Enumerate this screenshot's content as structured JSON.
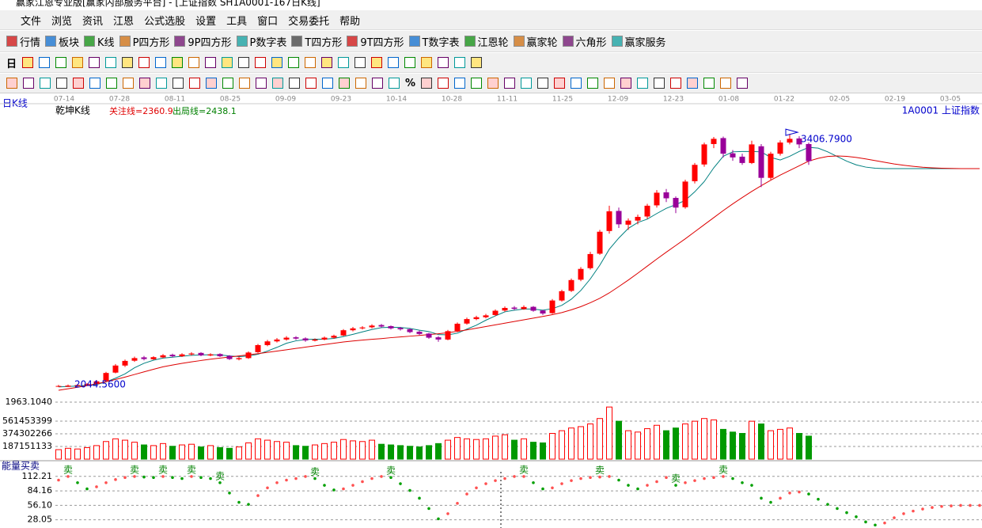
{
  "window": {
    "title": "赢家江恩专业版[赢家内部服务平台] - [上证指数 SH1A0001-167日K线]",
    "menu": [
      "文件",
      "浏览",
      "资讯",
      "江恩",
      "公式选股",
      "设置",
      "工具",
      "窗口",
      "交易委托",
      "帮助"
    ],
    "toolbar": [
      "行情",
      "板块",
      "K线",
      "P四方形",
      "9P四方形",
      "P数字表",
      "T四方形",
      "9T四方形",
      "T数字表",
      "江恩轮",
      "赢家轮",
      "六角形",
      "赢家服务"
    ],
    "period": "日",
    "percent_button": "%"
  },
  "chart_data": [
    {
      "type": "candlestick",
      "panel_label": "日K线",
      "indicator_name": "乾坤K线",
      "focus_line": "关注线=2360.9",
      "exit_line": "出局线=2438.1",
      "symbol": "1A0001  上证指数",
      "dates": [
        "07-14",
        "07-28",
        "08-11",
        "08-25",
        "09-09",
        "09-23",
        "10-14",
        "10-28",
        "11-11",
        "11-25",
        "12-09",
        "12-23",
        "01-08",
        "01-22",
        "02-05",
        "02-19",
        "03-05"
      ],
      "ylim": [
        1963.104,
        3552
      ],
      "yticks": [
        {
          "value": 1963.104,
          "label": "1963.1040"
        }
      ],
      "up_color": "#ff0000",
      "down_color": "#990099",
      "candles": [
        [
          2046,
          2056,
          2044.56,
          2050
        ],
        [
          2046,
          2058,
          2045,
          2052
        ],
        [
          2050,
          2060,
          2045,
          2055
        ],
        [
          2054,
          2066,
          2050,
          2060
        ],
        [
          2060,
          2082,
          2056,
          2075
        ],
        [
          2078,
          2126,
          2074,
          2120
        ],
        [
          2122,
          2168,
          2118,
          2160
        ],
        [
          2160,
          2192,
          2152,
          2185
        ],
        [
          2186,
          2208,
          2180,
          2200
        ],
        [
          2204,
          2212,
          2188,
          2195
        ],
        [
          2194,
          2210,
          2190,
          2205
        ],
        [
          2204,
          2222,
          2200,
          2215
        ],
        [
          2218,
          2224,
          2204,
          2210
        ],
        [
          2210,
          2226,
          2206,
          2220
        ],
        [
          2220,
          2232,
          2214,
          2225
        ],
        [
          2228,
          2232,
          2210,
          2215
        ],
        [
          2214,
          2226,
          2210,
          2220
        ],
        [
          2222,
          2226,
          2206,
          2210
        ],
        [
          2212,
          2216,
          2190,
          2195
        ],
        [
          2194,
          2206,
          2188,
          2200
        ],
        [
          2200,
          2236,
          2196,
          2230
        ],
        [
          2232,
          2276,
          2228,
          2270
        ],
        [
          2270,
          2298,
          2264,
          2290
        ],
        [
          2290,
          2308,
          2284,
          2300
        ],
        [
          2300,
          2318,
          2294,
          2310
        ],
        [
          2312,
          2318,
          2298,
          2305
        ],
        [
          2306,
          2312,
          2288,
          2295
        ],
        [
          2294,
          2306,
          2290,
          2300
        ],
        [
          2300,
          2316,
          2296,
          2310
        ],
        [
          2310,
          2326,
          2304,
          2320
        ],
        [
          2322,
          2356,
          2318,
          2350
        ],
        [
          2350,
          2368,
          2344,
          2360
        ],
        [
          2360,
          2372,
          2354,
          2365
        ],
        [
          2366,
          2382,
          2360,
          2375
        ],
        [
          2378,
          2384,
          2364,
          2370
        ],
        [
          2372,
          2376,
          2354,
          2360
        ],
        [
          2362,
          2368,
          2348,
          2355
        ],
        [
          2356,
          2360,
          2334,
          2340
        ],
        [
          2342,
          2348,
          2324,
          2330
        ],
        [
          2332,
          2336,
          2304,
          2310
        ],
        [
          2312,
          2318,
          2288,
          2300
        ],
        [
          2300,
          2352,
          2296,
          2345
        ],
        [
          2346,
          2392,
          2340,
          2385
        ],
        [
          2386,
          2418,
          2380,
          2410
        ],
        [
          2410,
          2428,
          2404,
          2420
        ],
        [
          2420,
          2438,
          2414,
          2430
        ],
        [
          2432,
          2462,
          2426,
          2455
        ],
        [
          2456,
          2478,
          2450,
          2470
        ],
        [
          2472,
          2480,
          2458,
          2465
        ],
        [
          2464,
          2484,
          2460,
          2475
        ],
        [
          2476,
          2480,
          2450,
          2455
        ],
        [
          2456,
          2460,
          2432,
          2440
        ],
        [
          2442,
          2518,
          2438,
          2510
        ],
        [
          2510,
          2568,
          2504,
          2560
        ],
        [
          2562,
          2628,
          2556,
          2620
        ],
        [
          2622,
          2690,
          2614,
          2680
        ],
        [
          2684,
          2772,
          2676,
          2760
        ],
        [
          2762,
          2890,
          2756,
          2880
        ],
        [
          2884,
          3020,
          2870,
          2990
        ],
        [
          2992,
          3010,
          2900,
          2920
        ],
        [
          2918,
          2952,
          2890,
          2940
        ],
        [
          2940,
          2972,
          2920,
          2960
        ],
        [
          2962,
          3030,
          2950,
          3020
        ],
        [
          3022,
          3104,
          3010,
          3090
        ],
        [
          3092,
          3110,
          3040,
          3060
        ],
        [
          3062,
          3070,
          2980,
          3010
        ],
        [
          3012,
          3160,
          3004,
          3150
        ],
        [
          3152,
          3250,
          3140,
          3240
        ],
        [
          3242,
          3360,
          3230,
          3350
        ],
        [
          3352,
          3390,
          3330,
          3380
        ],
        [
          3384,
          3392,
          3280,
          3300
        ],
        [
          3302,
          3320,
          3262,
          3280
        ],
        [
          3284,
          3300,
          3240,
          3250
        ],
        [
          3250,
          3370,
          3244,
          3350
        ],
        [
          3340,
          3352,
          3120,
          3170
        ],
        [
          3170,
          3310,
          3160,
          3300
        ],
        [
          3300,
          3372,
          3290,
          3360
        ],
        [
          3360,
          3406.79,
          3350,
          3380
        ],
        [
          3382,
          3394,
          3330,
          3350
        ],
        [
          3352,
          3360,
          3240,
          3260
        ]
      ],
      "annotations": [
        {
          "index": 77,
          "value": 3406.79,
          "label": "3406.7900"
        },
        {
          "index": 0,
          "value": 2044.56,
          "label": "2044.5600"
        }
      ],
      "ma_lines": [
        {
          "color": "#008080",
          "values": [
            2045,
            2047,
            2050,
            2053,
            2058,
            2072,
            2092,
            2115,
            2148,
            2172,
            2189,
            2200,
            2205,
            2210,
            2215,
            2217,
            2218,
            2217,
            2212,
            2208,
            2211,
            2221,
            2238,
            2258,
            2280,
            2293,
            2300,
            2302,
            2302,
            2306,
            2316,
            2328,
            2341,
            2354,
            2364,
            2366,
            2365,
            2360,
            2350,
            2343,
            2327,
            2325,
            2334,
            2356,
            2377,
            2404,
            2427,
            2449,
            2458,
            2464,
            2464,
            2458,
            2466,
            2484,
            2517,
            2564,
            2626,
            2700,
            2786,
            2846,
            2898,
            2930,
            2948,
            2978,
            3006,
            3026,
            3049,
            3095,
            3150,
            3224,
            3286,
            3310,
            3312,
            3312,
            3310,
            3280,
            3266,
            3286,
            3312,
            3334,
            3330,
            3310,
            3285,
            3260,
            3240,
            3228,
            3222,
            3220,
            3220,
            3220,
            3220,
            3220,
            3220,
            3220,
            3220,
            3220,
            3220,
            3220
          ]
        },
        {
          "color": "#dd0000",
          "values": [
            2027,
            2035,
            2043,
            2052,
            2062,
            2073,
            2085,
            2098,
            2112,
            2126,
            2140,
            2153,
            2163,
            2172,
            2180,
            2187,
            2194,
            2200,
            2206,
            2212,
            2218,
            2224,
            2231,
            2238,
            2245,
            2252,
            2259,
            2266,
            2273,
            2280,
            2287,
            2292,
            2297,
            2301,
            2305,
            2310,
            2314,
            2318,
            2322,
            2327,
            2331,
            2337,
            2344,
            2352,
            2361,
            2370,
            2379,
            2388,
            2397,
            2406,
            2415,
            2424,
            2434,
            2445,
            2460,
            2477,
            2498,
            2522,
            2551,
            2585,
            2620,
            2657,
            2695,
            2733,
            2770,
            2806,
            2842,
            2880,
            2918,
            2956,
            2994,
            3030,
            3064,
            3097,
            3128,
            3157,
            3185,
            3210,
            3235,
            3260,
            3275,
            3285,
            3288,
            3286,
            3280,
            3272,
            3263,
            3254,
            3245,
            3238,
            3232,
            3227,
            3224,
            3222,
            3221,
            3220,
            3220,
            3220
          ]
        }
      ]
    },
    {
      "type": "bar",
      "ylim": [
        0,
        935755665
      ],
      "yticks": [
        187151133,
        374302266,
        561453399
      ],
      "up_color": "#ff0000",
      "down_color": "#009900",
      "values": [
        140000000,
        160000000,
        150000000,
        170000000,
        200000000,
        260000000,
        300000000,
        280000000,
        250000000,
        210000000,
        200000000,
        230000000,
        190000000,
        210000000,
        220000000,
        180000000,
        200000000,
        170000000,
        160000000,
        180000000,
        240000000,
        300000000,
        280000000,
        260000000,
        250000000,
        200000000,
        190000000,
        210000000,
        230000000,
        250000000,
        290000000,
        270000000,
        260000000,
        280000000,
        220000000,
        210000000,
        200000000,
        190000000,
        180000000,
        200000000,
        230000000,
        280000000,
        320000000,
        300000000,
        290000000,
        300000000,
        340000000,
        360000000,
        280000000,
        300000000,
        250000000,
        240000000,
        380000000,
        420000000,
        460000000,
        480000000,
        520000000,
        600000000,
        770000000,
        560000000,
        420000000,
        400000000,
        450000000,
        500000000,
        420000000,
        460000000,
        520000000,
        560000000,
        600000000,
        580000000,
        440000000,
        400000000,
        380000000,
        560000000,
        520000000,
        420000000,
        440000000,
        460000000,
        380000000,
        340000000
      ]
    },
    {
      "type": "dots",
      "title": "能量买卖",
      "ylim": [
        13,
        126
      ],
      "yticks": [
        28.05,
        {
          "value": 56.1,
          "label": "56.10"
        },
        84.16,
        112.21
      ],
      "up_color": "#ff5050",
      "down_color": "#00a000",
      "values": [
        105,
        112,
        100,
        88,
        92,
        100,
        106,
        110,
        112,
        111,
        110,
        112,
        110,
        108,
        112,
        110,
        108,
        100,
        80,
        62,
        58,
        75,
        90,
        100,
        105,
        108,
        112,
        108,
        95,
        86,
        88,
        95,
        102,
        108,
        112,
        110,
        98,
        85,
        70,
        50,
        30,
        40,
        60,
        78,
        90,
        98,
        104,
        108,
        112,
        112,
        100,
        88,
        90,
        98,
        104,
        108,
        110,
        111,
        112,
        105,
        95,
        88,
        95,
        102,
        110,
        95,
        100,
        104,
        108,
        110,
        112,
        108,
        100,
        95,
        70,
        62,
        70,
        80,
        82,
        78,
        68,
        58,
        50,
        42,
        34,
        24,
        18,
        22,
        32,
        40,
        45,
        49,
        52,
        54,
        55,
        56,
        56,
        56
      ],
      "signals": [
        {
          "index": 1,
          "label": "卖"
        },
        {
          "index": 8,
          "label": "卖"
        },
        {
          "index": 11,
          "label": "卖"
        },
        {
          "index": 14,
          "label": "卖"
        },
        {
          "index": 17,
          "label": "卖"
        },
        {
          "index": 27,
          "label": "卖"
        },
        {
          "index": 35,
          "label": "卖"
        },
        {
          "index": 49,
          "label": "卖"
        },
        {
          "index": 57,
          "label": "卖"
        },
        {
          "index": 65,
          "label": "卖"
        },
        {
          "index": 70,
          "label": "卖"
        }
      ]
    }
  ]
}
